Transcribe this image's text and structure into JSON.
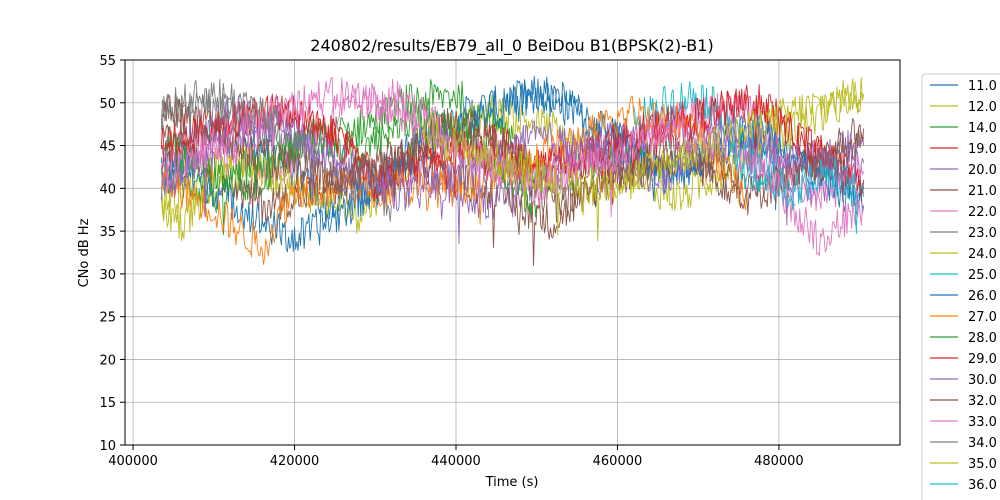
{
  "chart_data": {
    "type": "line",
    "title": "240802/results/EB79_all_0 BeiDou B1(BPSK(2)-B1)",
    "xlabel": "Time (s)",
    "ylabel": "CNo dB Hz",
    "xlim": [
      399000,
      495000
    ],
    "ylim": [
      10,
      55
    ],
    "xticks": [
      400000,
      420000,
      440000,
      460000,
      480000
    ],
    "xtick_labels": [
      "400000",
      "420000",
      "440000",
      "460000",
      "480000"
    ],
    "yticks": [
      10,
      15,
      20,
      25,
      30,
      35,
      40,
      45,
      50,
      55
    ],
    "ytick_labels": [
      "10",
      "15",
      "20",
      "25",
      "30",
      "35",
      "40",
      "45",
      "50",
      "55"
    ],
    "grid": true,
    "legend_position": "right",
    "series": [
      {
        "name": "11.0",
        "color": "#1f77b4",
        "x": [
          403500,
          410000,
          418000,
          424000,
          430000,
          436000,
          442000,
          450000,
          458000,
          466000,
          474000,
          482000,
          490500
        ],
        "y": [
          40,
          47,
          44,
          38,
          41,
          46,
          49,
          51,
          47,
          42,
          45,
          44,
          40
        ]
      },
      {
        "name": "12.0",
        "color": "#bcbd22",
        "x": [
          403500,
          412000,
          420000,
          428000,
          436000,
          444000,
          452000,
          460000,
          468000,
          476000,
          484000,
          490500
        ],
        "y": [
          38,
          44,
          40,
          37,
          45,
          49,
          47,
          41,
          39,
          44,
          48,
          51
        ]
      },
      {
        "name": "14.0",
        "color": "#2ca02c",
        "x": [
          403500,
          410000,
          416000,
          422000,
          428000,
          434000,
          440000,
          446000,
          452000,
          458000,
          464000
        ],
        "y": [
          42,
          39,
          41,
          46,
          47,
          50,
          51,
          46,
          40,
          44,
          43
        ]
      },
      {
        "name": "19.0",
        "color": "#d62728",
        "x": [
          403500,
          412000,
          420000,
          426000,
          430000,
          436000,
          444000,
          452000,
          460000,
          468000,
          476000,
          484000,
          490500
        ],
        "y": [
          46,
          48,
          49,
          45,
          41,
          43,
          46,
          42,
          44,
          47,
          50,
          45,
          40
        ]
      },
      {
        "name": "20.0",
        "color": "#9467bd",
        "x": [
          403500,
          412000,
          420000,
          428000,
          436000,
          444000,
          452000,
          460000,
          468000,
          476000,
          484000,
          490500
        ],
        "y": [
          44,
          49,
          46,
          40,
          42,
          38,
          42,
          46,
          48,
          44,
          40,
          43
        ]
      },
      {
        "name": "21.0",
        "color": "#8c564b",
        "x": [
          403500,
          410000,
          416000,
          424000,
          432000,
          440000,
          446000,
          452000,
          460000,
          468000,
          476000,
          484000,
          490500
        ],
        "y": [
          48,
          42,
          38,
          40,
          44,
          41,
          39,
          36,
          42,
          45,
          40,
          43,
          47
        ]
      },
      {
        "name": "22.0",
        "color": "#e377c2",
        "x": [
          403500,
          410000,
          418000,
          426000,
          432000,
          438000,
          444000,
          452000,
          460000,
          468000,
          476000,
          484000,
          490500
        ],
        "y": [
          41,
          45,
          42,
          49,
          51,
          47,
          43,
          41,
          45,
          48,
          50,
          38,
          42
        ]
      },
      {
        "name": "23.0",
        "color": "#7f7f7f",
        "x": [
          403500,
          408000,
          414000,
          420000,
          426000,
          432000
        ],
        "y": [
          49,
          50,
          48,
          45,
          41,
          38
        ]
      },
      {
        "name": "24.0",
        "color": "#bcbd22",
        "x": [
          403500,
          406000,
          410000,
          414000,
          420000
        ],
        "y": [
          38,
          36,
          40,
          43,
          41
        ]
      },
      {
        "name": "25.0",
        "color": "#17becf",
        "x": [
          462000,
          466000,
          470000,
          474000,
          478000,
          482000
        ],
        "y": [
          48,
          50,
          51,
          48,
          43,
          38
        ]
      },
      {
        "name": "26.0",
        "color": "#1f77b4",
        "x": [
          403500,
          410000,
          416000,
          420000,
          424000,
          430000,
          436000,
          444000,
          452000,
          460000,
          466000,
          472000,
          478000,
          484000,
          490500
        ],
        "y": [
          43,
          40,
          36,
          34,
          36,
          40,
          45,
          49,
          51,
          46,
          41,
          44,
          47,
          42,
          38
        ]
      },
      {
        "name": "27.0",
        "color": "#ff7f0e",
        "x": [
          403500,
          408000,
          412000,
          416000,
          420000,
          440000,
          456000,
          462000,
          468000,
          472000,
          476000
        ],
        "y": [
          41,
          39,
          36,
          33,
          40,
          40,
          46,
          49,
          48,
          44,
          39
        ]
      },
      {
        "name": "28.0",
        "color": "#2ca02c",
        "x": [
          404000,
          410000,
          416000,
          422000,
          428000,
          434000,
          440000,
          446000,
          450000
        ],
        "y": [
          45,
          41,
          43,
          46,
          44,
          48,
          47,
          42,
          38
        ]
      },
      {
        "name": "29.0",
        "color": "#d62728",
        "x": [
          403500,
          410000,
          418000,
          426000,
          430000,
          434000,
          440000,
          448000,
          456000,
          464000,
          472000,
          478000,
          484000,
          490500
        ],
        "y": [
          44,
          47,
          49,
          46,
          40,
          43,
          45,
          42,
          44,
          47,
          49,
          50,
          44,
          41
        ]
      },
      {
        "name": "30.0",
        "color": "#9467bd",
        "x": [
          403500,
          410000,
          418000,
          426000,
          434000,
          442000,
          450000,
          458000,
          466000,
          474000,
          482000,
          490500
        ],
        "y": [
          40,
          45,
          48,
          43,
          39,
          42,
          46,
          44,
          41,
          47,
          43,
          45
        ]
      },
      {
        "name": "32.0",
        "color": "#8c564b",
        "x": [
          403500,
          410000,
          418000,
          426000,
          434000,
          440000,
          446000,
          452000,
          460000,
          468000,
          476000,
          484000,
          490500
        ],
        "y": [
          50,
          46,
          43,
          41,
          44,
          48,
          45,
          38,
          41,
          44,
          39,
          42,
          46
        ]
      },
      {
        "name": "33.0",
        "color": "#e377c2",
        "x": [
          403500,
          412000,
          420000,
          426000,
          430000,
          436000,
          442000,
          450000,
          458000,
          466000,
          474000,
          480000,
          485000,
          490500
        ],
        "y": [
          42,
          46,
          50,
          51,
          50,
          47,
          44,
          40,
          43,
          47,
          45,
          40,
          34,
          38
        ]
      },
      {
        "name": "34.0",
        "color": "#7f7f7f",
        "x": [
          403500,
          406000,
          410000,
          414000,
          418000
        ],
        "y": [
          49,
          50,
          51,
          50,
          47
        ]
      },
      {
        "name": "35.0",
        "color": "#bcbd22",
        "x": [
          436000,
          440000,
          446000,
          452000,
          458000,
          466000,
          474000,
          482000,
          486000,
          490500
        ],
        "y": [
          47,
          45,
          43,
          41,
          40,
          43,
          46,
          49,
          50,
          51
        ]
      },
      {
        "name": "36.0",
        "color": "#17becf",
        "x": [
          474000,
          478000,
          482000,
          486000,
          490500
        ],
        "y": [
          44,
          41,
          40,
          42,
          39
        ]
      }
    ]
  }
}
